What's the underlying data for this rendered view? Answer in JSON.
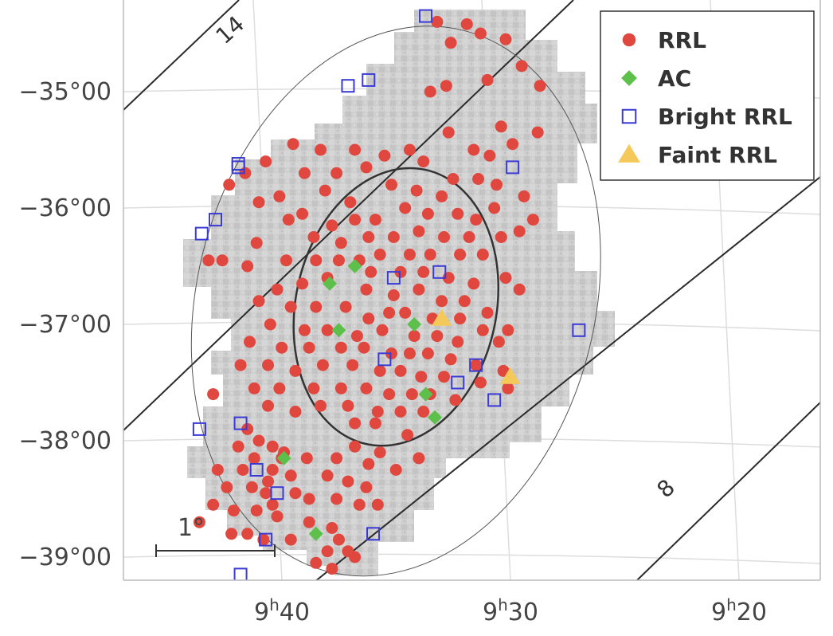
{
  "chart_data": {
    "type": "scatter",
    "xlabel": "",
    "ylabel": "",
    "x_axis": {
      "unit": "minutes of RA",
      "direction": "decreasing-right",
      "range": [
        44.5,
        16
      ],
      "ticks": [
        {
          "value": 40,
          "label_h": "9",
          "label_m": "40",
          "sup_h": "h"
        },
        {
          "value": 30,
          "label_h": "9",
          "label_m": "30",
          "sup_h": "h"
        },
        {
          "value": 20,
          "label_h": "9",
          "label_m": "20",
          "sup_h": "h"
        }
      ]
    },
    "y_axis": {
      "unit": "degrees",
      "range": [
        -39.15,
        -34.3
      ],
      "ticks": [
        {
          "value": -35,
          "label": "−35°00"
        },
        {
          "value": -36,
          "label": "−36°00"
        },
        {
          "value": -37,
          "label": "−37°00"
        },
        {
          "value": -38,
          "label": "−38°00"
        },
        {
          "value": -39,
          "label": "−39°00"
        }
      ]
    },
    "grid": true,
    "legend": {
      "position": "top-right",
      "entries": [
        {
          "key": "rrl",
          "label": "RRL",
          "marker": "circle",
          "color": "#e0483f"
        },
        {
          "key": "ac",
          "label": "AC",
          "marker": "diamond",
          "color": "#5cc04a"
        },
        {
          "key": "bright",
          "label": "Bright RRL",
          "marker": "open-square",
          "color": "#3a3ad6"
        },
        {
          "key": "faint",
          "label": "Faint RRL",
          "marker": "triangle",
          "color": "#f5c85a"
        }
      ]
    },
    "ellipses": [
      {
        "center": [
          34.8,
          -36.85
        ],
        "semi_axes": [
          8.0,
          1.05
        ],
        "angle_deg": 80,
        "style": "solid-thick"
      },
      {
        "center": [
          34.8,
          -36.8
        ],
        "semi_axes": [
          15.6,
          2.4
        ],
        "angle_deg": 78,
        "style": "solid-thin"
      }
    ],
    "contour_labels": [
      {
        "text": "14",
        "x": 42.3,
        "y": -34.6
      },
      {
        "text": "8",
        "x": 23.0,
        "y": -38.5
      }
    ],
    "scale_bar": {
      "label": "1°"
    },
    "series": [
      {
        "key": "rrl",
        "points": [
          [
            33.0,
            -34.4
          ],
          [
            31.7,
            -34.42
          ],
          [
            32.4,
            -34.58
          ],
          [
            31.1,
            -34.5
          ],
          [
            30.0,
            -34.55
          ],
          [
            29.3,
            -34.78
          ],
          [
            30.8,
            -34.9
          ],
          [
            28.5,
            -34.95
          ],
          [
            33.3,
            -35.0
          ],
          [
            32.6,
            -34.95
          ],
          [
            30.2,
            -35.3
          ],
          [
            29.7,
            -35.45
          ],
          [
            28.6,
            -35.35
          ],
          [
            32.5,
            -35.35
          ],
          [
            31.4,
            -35.5
          ],
          [
            30.7,
            -35.55
          ],
          [
            32.3,
            -35.75
          ],
          [
            31.2,
            -35.75
          ],
          [
            30.4,
            -35.8
          ],
          [
            39.3,
            -35.45
          ],
          [
            38.1,
            -35.5
          ],
          [
            36.6,
            -35.5
          ],
          [
            35.3,
            -35.55
          ],
          [
            34.2,
            -35.5
          ],
          [
            33.6,
            -35.6
          ],
          [
            36.1,
            -35.65
          ],
          [
            37.4,
            -35.7
          ],
          [
            38.8,
            -35.7
          ],
          [
            40.5,
            -35.6
          ],
          [
            41.4,
            -35.7
          ],
          [
            42.1,
            -35.8
          ],
          [
            35.0,
            -35.8
          ],
          [
            33.9,
            -35.85
          ],
          [
            32.8,
            -35.9
          ],
          [
            36.8,
            -35.95
          ],
          [
            37.9,
            -35.85
          ],
          [
            39.9,
            -35.9
          ],
          [
            40.8,
            -35.95
          ],
          [
            34.4,
            -36.0
          ],
          [
            33.4,
            -36.05
          ],
          [
            32.1,
            -36.05
          ],
          [
            31.3,
            -36.1
          ],
          [
            30.5,
            -36.0
          ],
          [
            29.2,
            -35.9
          ],
          [
            28.8,
            -36.1
          ],
          [
            35.7,
            -36.1
          ],
          [
            36.6,
            -36.1
          ],
          [
            37.6,
            -36.15
          ],
          [
            38.9,
            -36.05
          ],
          [
            39.5,
            -36.1
          ],
          [
            33.8,
            -36.2
          ],
          [
            32.7,
            -36.25
          ],
          [
            31.6,
            -36.25
          ],
          [
            30.2,
            -36.25
          ],
          [
            29.4,
            -36.2
          ],
          [
            34.9,
            -36.25
          ],
          [
            36.0,
            -36.25
          ],
          [
            37.2,
            -36.3
          ],
          [
            38.4,
            -36.25
          ],
          [
            40.9,
            -36.3
          ],
          [
            35.5,
            -36.4
          ],
          [
            34.2,
            -36.4
          ],
          [
            33.3,
            -36.4
          ],
          [
            32.0,
            -36.4
          ],
          [
            31.0,
            -36.4
          ],
          [
            36.4,
            -36.45
          ],
          [
            37.3,
            -36.45
          ],
          [
            38.3,
            -36.45
          ],
          [
            39.6,
            -36.45
          ],
          [
            42.4,
            -36.45
          ],
          [
            41.3,
            -36.5
          ],
          [
            43.0,
            -36.45
          ],
          [
            35.9,
            -36.55
          ],
          [
            34.6,
            -36.55
          ],
          [
            33.6,
            -36.55
          ],
          [
            32.5,
            -36.6
          ],
          [
            31.4,
            -36.65
          ],
          [
            30.0,
            -36.6
          ],
          [
            29.4,
            -36.7
          ],
          [
            37.8,
            -36.6
          ],
          [
            38.9,
            -36.65
          ],
          [
            40.0,
            -36.7
          ],
          [
            40.8,
            -36.8
          ],
          [
            36.1,
            -36.7
          ],
          [
            34.9,
            -36.75
          ],
          [
            33.8,
            -36.7
          ],
          [
            32.8,
            -36.8
          ],
          [
            31.8,
            -36.8
          ],
          [
            30.8,
            -36.9
          ],
          [
            39.4,
            -36.85
          ],
          [
            38.3,
            -36.85
          ],
          [
            37.0,
            -36.85
          ],
          [
            36.0,
            -36.95
          ],
          [
            35.1,
            -36.9
          ],
          [
            34.4,
            -36.9
          ],
          [
            33.2,
            -36.95
          ],
          [
            32.0,
            -36.95
          ],
          [
            31.0,
            -37.05
          ],
          [
            29.9,
            -37.05
          ],
          [
            40.3,
            -37.0
          ],
          [
            38.8,
            -37.05
          ],
          [
            37.8,
            -37.05
          ],
          [
            36.5,
            -37.1
          ],
          [
            35.4,
            -37.05
          ],
          [
            34.0,
            -37.1
          ],
          [
            33.0,
            -37.1
          ],
          [
            32.1,
            -37.15
          ],
          [
            30.3,
            -37.15
          ],
          [
            41.2,
            -37.15
          ],
          [
            39.8,
            -37.2
          ],
          [
            38.6,
            -37.2
          ],
          [
            37.2,
            -37.2
          ],
          [
            36.2,
            -37.2
          ],
          [
            35.0,
            -37.25
          ],
          [
            34.2,
            -37.25
          ],
          [
            33.4,
            -37.25
          ],
          [
            32.4,
            -37.3
          ],
          [
            31.3,
            -37.35
          ],
          [
            30.1,
            -37.4
          ],
          [
            41.6,
            -37.35
          ],
          [
            40.4,
            -37.35
          ],
          [
            39.2,
            -37.4
          ],
          [
            38.0,
            -37.35
          ],
          [
            36.7,
            -37.35
          ],
          [
            35.5,
            -37.4
          ],
          [
            34.6,
            -37.4
          ],
          [
            33.7,
            -37.45
          ],
          [
            32.7,
            -37.45
          ],
          [
            31.1,
            -37.5
          ],
          [
            29.9,
            -37.55
          ],
          [
            41.0,
            -37.55
          ],
          [
            39.9,
            -37.55
          ],
          [
            38.4,
            -37.55
          ],
          [
            37.2,
            -37.55
          ],
          [
            36.1,
            -37.55
          ],
          [
            35.1,
            -37.6
          ],
          [
            34.1,
            -37.6
          ],
          [
            33.3,
            -37.6
          ],
          [
            32.2,
            -37.65
          ],
          [
            42.8,
            -37.6
          ],
          [
            40.4,
            -37.7
          ],
          [
            39.2,
            -37.75
          ],
          [
            38.1,
            -37.7
          ],
          [
            36.9,
            -37.7
          ],
          [
            35.6,
            -37.75
          ],
          [
            34.6,
            -37.75
          ],
          [
            33.6,
            -37.75
          ],
          [
            36.6,
            -37.85
          ],
          [
            35.7,
            -37.85
          ],
          [
            34.3,
            -37.95
          ],
          [
            41.3,
            -37.9
          ],
          [
            40.8,
            -38.0
          ],
          [
            40.2,
            -38.05
          ],
          [
            41.7,
            -38.05
          ],
          [
            39.8,
            -38.15
          ],
          [
            41.0,
            -38.15
          ],
          [
            38.7,
            -38.15
          ],
          [
            37.4,
            -38.15
          ],
          [
            36.6,
            -38.05
          ],
          [
            35.5,
            -38.1
          ],
          [
            33.8,
            -38.15
          ],
          [
            34.8,
            -38.25
          ],
          [
            36.0,
            -38.2
          ],
          [
            42.6,
            -38.25
          ],
          [
            41.5,
            -38.25
          ],
          [
            40.2,
            -38.25
          ],
          [
            39.4,
            -38.3
          ],
          [
            37.8,
            -38.3
          ],
          [
            36.9,
            -38.35
          ],
          [
            36.1,
            -38.4
          ],
          [
            42.2,
            -38.4
          ],
          [
            41.1,
            -38.4
          ],
          [
            40.5,
            -38.45
          ],
          [
            39.2,
            -38.45
          ],
          [
            38.6,
            -38.5
          ],
          [
            37.4,
            -38.5
          ],
          [
            36.4,
            -38.55
          ],
          [
            35.6,
            -38.55
          ],
          [
            42.8,
            -38.55
          ],
          [
            41.9,
            -38.6
          ],
          [
            40.9,
            -38.6
          ],
          [
            40.0,
            -38.65
          ],
          [
            38.6,
            -38.7
          ],
          [
            37.6,
            -38.75
          ],
          [
            43.4,
            -38.7
          ],
          [
            42.0,
            -38.8
          ],
          [
            41.3,
            -38.8
          ],
          [
            40.6,
            -38.85
          ],
          [
            39.4,
            -38.85
          ],
          [
            37.8,
            -38.95
          ],
          [
            36.9,
            -38.95
          ],
          [
            38.3,
            -39.05
          ],
          [
            37.6,
            -39.1
          ],
          [
            36.6,
            -39.0
          ],
          [
            37.3,
            -38.85
          ],
          [
            40.2,
            -38.55
          ],
          [
            40.4,
            -38.35
          ],
          [
            39.7,
            -38.1
          ]
        ]
      },
      {
        "key": "ac",
        "points": [
          [
            36.6,
            -36.5
          ],
          [
            37.7,
            -36.65
          ],
          [
            37.3,
            -37.05
          ],
          [
            34.0,
            -37.0
          ],
          [
            33.5,
            -37.6
          ],
          [
            33.1,
            -37.8
          ],
          [
            39.7,
            -38.15
          ],
          [
            38.3,
            -38.8
          ]
        ]
      },
      {
        "key": "bright",
        "points": [
          [
            33.5,
            -34.35
          ],
          [
            36.9,
            -34.95
          ],
          [
            36.0,
            -34.9
          ],
          [
            29.7,
            -35.65
          ],
          [
            41.7,
            -35.62
          ],
          [
            41.7,
            -35.65
          ],
          [
            42.7,
            -36.1
          ],
          [
            43.3,
            -36.22
          ],
          [
            34.9,
            -36.6
          ],
          [
            32.9,
            -36.55
          ],
          [
            26.8,
            -37.05
          ],
          [
            35.3,
            -37.3
          ],
          [
            31.3,
            -37.35
          ],
          [
            32.1,
            -37.5
          ],
          [
            30.5,
            -37.65
          ],
          [
            43.4,
            -37.9
          ],
          [
            41.6,
            -37.85
          ],
          [
            40.9,
            -38.25
          ],
          [
            40.0,
            -38.45
          ],
          [
            40.5,
            -38.85
          ],
          [
            35.8,
            -38.8
          ],
          [
            41.6,
            -39.15
          ]
        ]
      },
      {
        "key": "faint",
        "points": [
          [
            32.8,
            -36.95
          ],
          [
            29.8,
            -37.45
          ]
        ]
      }
    ]
  }
}
